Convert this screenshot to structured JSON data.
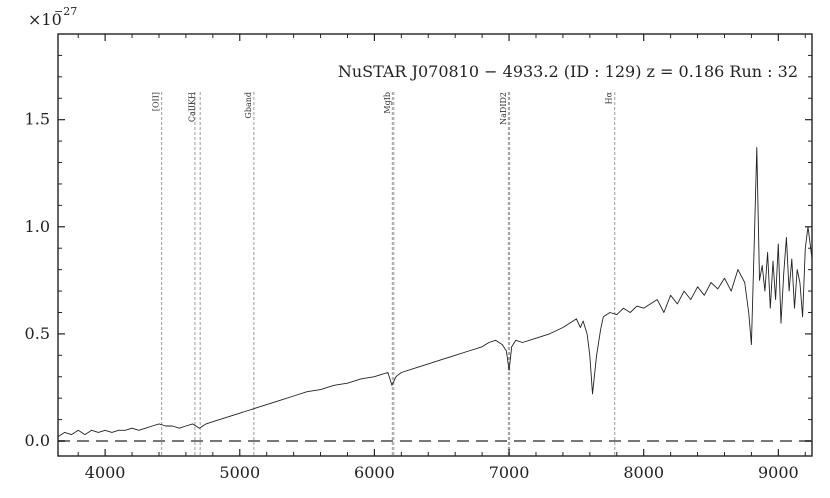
{
  "chart_data": {
    "type": "line",
    "title": "NuSTAR J070810 − 4933.2 (ID : 129)   z = 0.186   Run : 32",
    "xlabel": "",
    "ylabel": "",
    "y_multiplier": "×10",
    "y_exponent": "−27",
    "xlim": [
      3650,
      9250
    ],
    "ylim": [
      -0.07,
      1.9
    ],
    "x_ticks": [
      4000,
      5000,
      6000,
      7000,
      8000,
      9000
    ],
    "x_tick_labels": [
      "4000",
      "5000",
      "6000",
      "7000",
      "8000",
      "9000"
    ],
    "y_ticks": [
      0.0,
      0.5,
      1.0,
      1.5
    ],
    "y_tick_labels": [
      "0.0",
      "0.5",
      "1.0",
      "1.5"
    ],
    "grid": false,
    "zero_line": {
      "y": 0.0,
      "style": "dashed",
      "color": "#777777"
    },
    "emission_lines": [
      {
        "label": "[OII]",
        "x": 4420
      },
      {
        "label": "CaIIKH",
        "x": 4667
      },
      {
        "label": "CaIIKH",
        "x": 4706
      },
      {
        "label": "Gband",
        "x": 5105
      },
      {
        "label": "MgIb",
        "x": 6133
      },
      {
        "label": "MgIb",
        "x": 6144
      },
      {
        "label": "NaDID2",
        "x": 6995
      },
      {
        "label": "NaDID2",
        "x": 7004
      },
      {
        "label": "Hα",
        "x": 7785
      }
    ],
    "line_labels": [
      {
        "text": "[OII]",
        "x": 4420
      },
      {
        "text": "CaIIKH",
        "x": 4686
      },
      {
        "text": "Gband",
        "x": 5105
      },
      {
        "text": "MgIb",
        "x": 6138
      },
      {
        "text": "NaDID2",
        "x": 7000
      },
      {
        "text": "Hα",
        "x": 7785
      }
    ],
    "series": [
      {
        "color": "#222222",
        "x": [
          3650,
          3700,
          3750,
          3800,
          3850,
          3900,
          3950,
          4000,
          4050,
          4100,
          4150,
          4200,
          4250,
          4300,
          4350,
          4400,
          4450,
          4500,
          4550,
          4600,
          4650,
          4700,
          4750,
          4800,
          4850,
          4900,
          4950,
          5000,
          5050,
          5100,
          5150,
          5200,
          5300,
          5400,
          5500,
          5600,
          5700,
          5800,
          5900,
          6000,
          6050,
          6100,
          6130,
          6160,
          6200,
          6300,
          6400,
          6500,
          6600,
          6700,
          6800,
          6850,
          6900,
          6950,
          6980,
          7000,
          7020,
          7050,
          7100,
          7200,
          7300,
          7400,
          7450,
          7500,
          7530,
          7550,
          7580,
          7600,
          7620,
          7650,
          7680,
          7700,
          7750,
          7800,
          7850,
          7900,
          7950,
          8000,
          8050,
          8100,
          8150,
          8200,
          8250,
          8300,
          8350,
          8400,
          8450,
          8500,
          8550,
          8600,
          8650,
          8700,
          8750,
          8780,
          8800,
          8820,
          8840,
          8860,
          8880,
          8900,
          8920,
          8940,
          8960,
          8980,
          9000,
          9020,
          9040,
          9060,
          9080,
          9100,
          9120,
          9140,
          9160,
          9180,
          9200,
          9220,
          9250
        ],
        "y": [
          0.02,
          0.04,
          0.03,
          0.05,
          0.03,
          0.05,
          0.04,
          0.05,
          0.04,
          0.05,
          0.05,
          0.06,
          0.05,
          0.06,
          0.07,
          0.08,
          0.07,
          0.07,
          0.06,
          0.07,
          0.08,
          0.06,
          0.08,
          0.09,
          0.1,
          0.11,
          0.12,
          0.13,
          0.14,
          0.15,
          0.16,
          0.17,
          0.19,
          0.21,
          0.23,
          0.24,
          0.26,
          0.27,
          0.29,
          0.3,
          0.31,
          0.32,
          0.26,
          0.3,
          0.32,
          0.34,
          0.36,
          0.38,
          0.4,
          0.42,
          0.44,
          0.46,
          0.47,
          0.45,
          0.42,
          0.33,
          0.44,
          0.47,
          0.46,
          0.48,
          0.5,
          0.53,
          0.55,
          0.57,
          0.53,
          0.56,
          0.5,
          0.4,
          0.22,
          0.4,
          0.52,
          0.58,
          0.6,
          0.59,
          0.62,
          0.6,
          0.63,
          0.62,
          0.64,
          0.66,
          0.6,
          0.68,
          0.64,
          0.7,
          0.66,
          0.72,
          0.68,
          0.74,
          0.71,
          0.76,
          0.7,
          0.8,
          0.74,
          0.6,
          0.45,
          0.9,
          1.37,
          0.75,
          0.82,
          0.7,
          0.88,
          0.62,
          0.84,
          0.66,
          0.92,
          0.55,
          0.78,
          0.95,
          0.7,
          0.85,
          0.62,
          0.8,
          0.74,
          0.58,
          0.9,
          1.0,
          0.85
        ]
      }
    ]
  }
}
